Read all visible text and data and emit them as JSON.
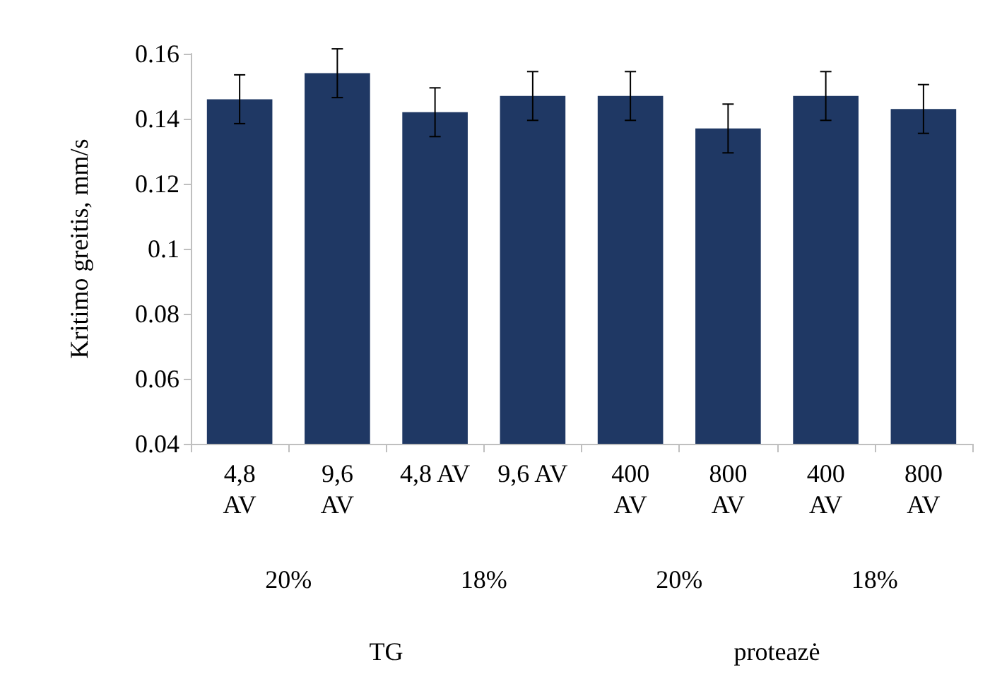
{
  "chart_data": {
    "type": "bar",
    "ylabel": "Kritimo greitis, mm/s",
    "categories": [
      "4,8\nAV",
      "9,6\nAV",
      "4,8 AV",
      "9,6 AV",
      "400\nAV",
      "800\nAV",
      "400\nAV",
      "800\nAV"
    ],
    "values": [
      0.146,
      0.154,
      0.142,
      0.147,
      0.147,
      0.137,
      0.147,
      0.143
    ],
    "errors": [
      0.0075,
      0.0075,
      0.0075,
      0.0075,
      0.0075,
      0.0075,
      0.0075,
      0.0075
    ],
    "color": "#1f3864",
    "ylim": [
      0.04,
      0.16
    ],
    "yticks": [
      0.04,
      0.06,
      0.08,
      0.1,
      0.12,
      0.14,
      0.16
    ],
    "grid": false,
    "annotations": [
      "20%",
      "18%",
      "20%",
      "18%",
      "TG",
      "proteazė"
    ]
  }
}
